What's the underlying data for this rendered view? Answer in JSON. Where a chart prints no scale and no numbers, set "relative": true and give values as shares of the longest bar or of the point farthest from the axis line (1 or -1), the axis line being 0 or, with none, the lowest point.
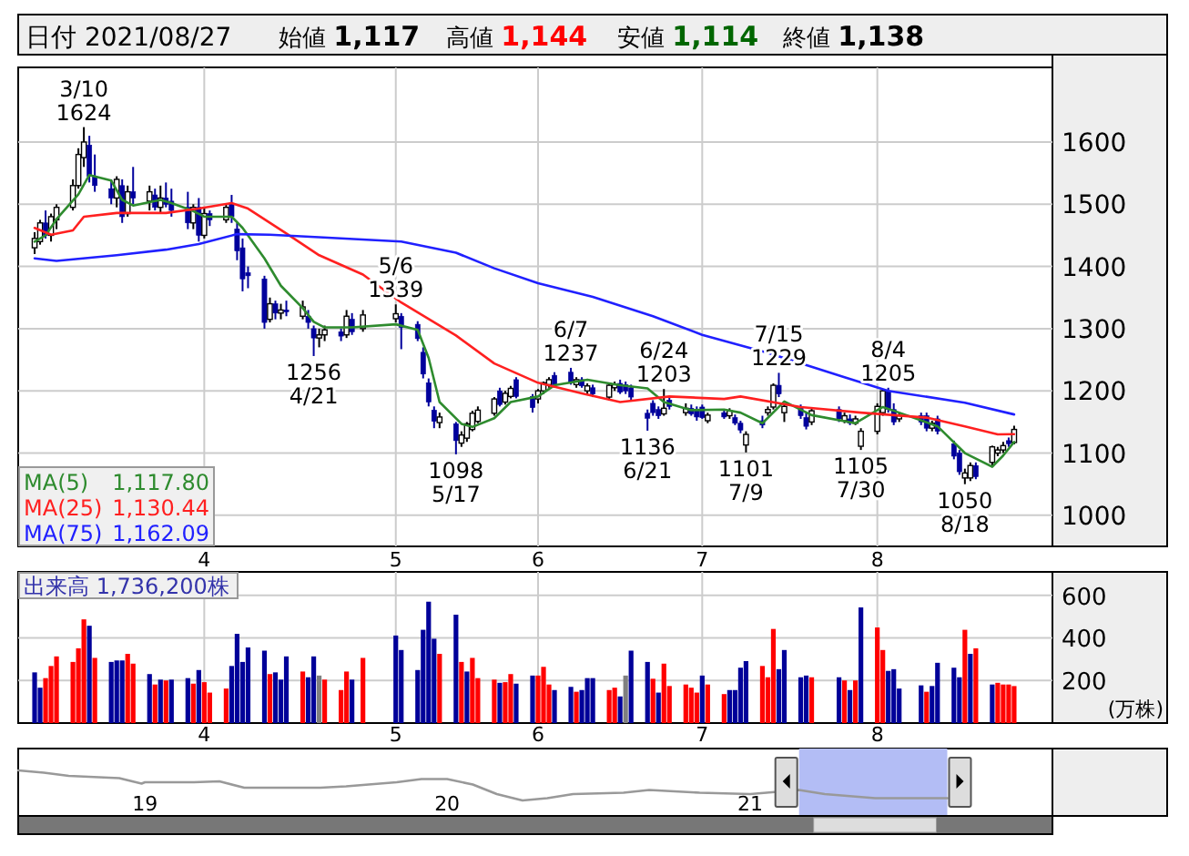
{
  "chart_data": [
    {
      "type": "candlestick",
      "title": "日付 2021/08/27",
      "annotations": [
        "始値 1,117",
        "高値 1,144",
        "安値 1,114",
        "終値 1,138",
        {
          "text": "3/10 1624",
          "x": "2021-03-10",
          "y": 1624
        },
        {
          "text": "1256 4/21",
          "x": "2021-04-21",
          "y": 1256
        },
        {
          "text": "5/6 1339",
          "x": "2021-05-06",
          "y": 1339
        },
        {
          "text": "1098 5/17",
          "x": "2021-05-17",
          "y": 1098
        },
        {
          "text": "6/7 1237",
          "x": "2021-06-07",
          "y": 1237
        },
        {
          "text": "1136 6/21",
          "x": "2021-06-21",
          "y": 1136
        },
        {
          "text": "6/24 1203",
          "x": "2021-06-24",
          "y": 1203
        },
        {
          "text": "1101 7/9",
          "x": "2021-07-09",
          "y": 1101
        },
        {
          "text": "7/15 1229",
          "x": "2021-07-15",
          "y": 1229
        },
        {
          "text": "1105 7/30",
          "x": "2021-07-30",
          "y": 1105
        },
        {
          "text": "8/4 1205",
          "x": "2021-08-04",
          "y": 1205
        },
        {
          "text": "1050 8/18",
          "x": "2021-08-18",
          "y": 1050
        }
      ],
      "x": [
        "2021-03-01",
        "2021-03-02",
        "2021-03-03",
        "2021-03-04",
        "2021-03-05",
        "2021-03-08",
        "2021-03-09",
        "2021-03-10",
        "2021-03-11",
        "2021-03-12",
        "2021-03-15",
        "2021-03-16",
        "2021-03-17",
        "2021-03-18",
        "2021-03-19",
        "2021-03-22",
        "2021-03-23",
        "2021-03-24",
        "2021-03-25",
        "2021-03-26",
        "2021-03-29",
        "2021-03-30",
        "2021-03-31",
        "2021-04-01",
        "2021-04-02",
        "2021-04-05",
        "2021-04-06",
        "2021-04-07",
        "2021-04-08",
        "2021-04-09",
        "2021-04-12",
        "2021-04-13",
        "2021-04-14",
        "2021-04-15",
        "2021-04-16",
        "2021-04-19",
        "2021-04-20",
        "2021-04-21",
        "2021-04-22",
        "2021-04-23",
        "2021-04-26",
        "2021-04-27",
        "2021-04-28",
        "2021-04-30",
        "2021-05-06",
        "2021-05-07",
        "2021-05-10",
        "2021-05-11",
        "2021-05-12",
        "2021-05-13",
        "2021-05-14",
        "2021-05-17",
        "2021-05-18",
        "2021-05-19",
        "2021-05-20",
        "2021-05-21",
        "2021-05-24",
        "2021-05-25",
        "2021-05-26",
        "2021-05-27",
        "2021-05-28",
        "2021-05-31",
        "2021-06-01",
        "2021-06-02",
        "2021-06-03",
        "2021-06-04",
        "2021-06-07",
        "2021-06-08",
        "2021-06-09",
        "2021-06-10",
        "2021-06-11",
        "2021-06-14",
        "2021-06-15",
        "2021-06-16",
        "2021-06-17",
        "2021-06-18",
        "2021-06-21",
        "2021-06-22",
        "2021-06-23",
        "2021-06-24",
        "2021-06-25",
        "2021-06-28",
        "2021-06-29",
        "2021-06-30",
        "2021-07-01",
        "2021-07-02",
        "2021-07-05",
        "2021-07-06",
        "2021-07-07",
        "2021-07-08",
        "2021-07-09",
        "2021-07-12",
        "2021-07-13",
        "2021-07-14",
        "2021-07-15",
        "2021-07-16",
        "2021-07-19",
        "2021-07-20",
        "2021-07-21",
        "2021-07-26",
        "2021-07-27",
        "2021-07-28",
        "2021-07-29",
        "2021-07-30",
        "2021-08-02",
        "2021-08-03",
        "2021-08-04",
        "2021-08-05",
        "2021-08-06",
        "2021-08-10",
        "2021-08-11",
        "2021-08-12",
        "2021-08-13",
        "2021-08-16",
        "2021-08-17",
        "2021-08-18",
        "2021-08-19",
        "2021-08-20",
        "2021-08-23",
        "2021-08-24",
        "2021-08-25",
        "2021-08-26",
        "2021-08-27"
      ],
      "ohlc": [
        [
          1430,
          1455,
          1420,
          1445
        ],
        [
          1440,
          1475,
          1435,
          1470
        ],
        [
          1470,
          1490,
          1445,
          1450
        ],
        [
          1450,
          1485,
          1440,
          1480
        ],
        [
          1475,
          1500,
          1460,
          1495
        ],
        [
          1495,
          1540,
          1490,
          1530
        ],
        [
          1530,
          1590,
          1525,
          1580
        ],
        [
          1575,
          1624,
          1560,
          1600
        ],
        [
          1595,
          1610,
          1535,
          1545
        ],
        [
          1545,
          1580,
          1520,
          1530
        ],
        [
          1525,
          1540,
          1500,
          1510
        ],
        [
          1510,
          1545,
          1495,
          1540
        ],
        [
          1530,
          1540,
          1470,
          1480
        ],
        [
          1485,
          1530,
          1480,
          1520
        ],
        [
          1520,
          1560,
          1500,
          1510
        ],
        [
          1505,
          1530,
          1490,
          1520
        ],
        [
          1515,
          1525,
          1490,
          1495
        ],
        [
          1495,
          1530,
          1485,
          1510
        ],
        [
          1510,
          1535,
          1495,
          1500
        ],
        [
          1505,
          1525,
          1480,
          1490
        ],
        [
          1495,
          1520,
          1460,
          1470
        ],
        [
          1470,
          1500,
          1460,
          1495
        ],
        [
          1495,
          1510,
          1440,
          1450
        ],
        [
          1450,
          1495,
          1445,
          1485
        ],
        [
          1485,
          1490,
          1465,
          1475
        ],
        [
          1475,
          1500,
          1470,
          1495
        ],
        [
          1500,
          1515,
          1470,
          1480
        ],
        [
          1460,
          1470,
          1410,
          1425
        ],
        [
          1430,
          1445,
          1360,
          1380
        ],
        [
          1390,
          1400,
          1365,
          1385
        ],
        [
          1380,
          1385,
          1300,
          1310
        ],
        [
          1315,
          1350,
          1310,
          1340
        ],
        [
          1340,
          1345,
          1315,
          1325
        ],
        [
          1325,
          1340,
          1315,
          1330
        ],
        [
          1330,
          1345,
          1320,
          1328
        ],
        [
          1320,
          1345,
          1315,
          1335
        ],
        [
          1320,
          1330,
          1300,
          1310
        ],
        [
          1300,
          1305,
          1256,
          1285
        ],
        [
          1285,
          1300,
          1270,
          1290
        ],
        [
          1290,
          1305,
          1280,
          1298
        ],
        [
          1295,
          1300,
          1280,
          1288
        ],
        [
          1290,
          1330,
          1285,
          1320
        ],
        [
          1315,
          1325,
          1290,
          1295
        ],
        [
          1300,
          1330,
          1295,
          1322
        ],
        [
          1316,
          1339,
          1310,
          1324
        ],
        [
          1320,
          1325,
          1267,
          1302
        ],
        [
          1307,
          1312,
          1280,
          1284
        ],
        [
          1262,
          1270,
          1220,
          1227
        ],
        [
          1213,
          1220,
          1175,
          1182
        ],
        [
          1169,
          1175,
          1140,
          1151
        ],
        [
          1149,
          1165,
          1140,
          1158
        ],
        [
          1147,
          1150,
          1098,
          1120
        ],
        [
          1116,
          1135,
          1110,
          1129
        ],
        [
          1124,
          1150,
          1118,
          1147
        ],
        [
          1138,
          1168,
          1135,
          1164
        ],
        [
          1151,
          1175,
          1148,
          1169
        ],
        [
          1164,
          1190,
          1160,
          1187
        ],
        [
          1200,
          1205,
          1175,
          1178
        ],
        [
          1182,
          1200,
          1178,
          1196
        ],
        [
          1191,
          1208,
          1188,
          1204
        ],
        [
          1218,
          1222,
          1188,
          1191
        ],
        [
          1191,
          1195,
          1165,
          1173
        ],
        [
          1187,
          1203,
          1180,
          1200
        ],
        [
          1200,
          1215,
          1195,
          1213
        ],
        [
          1210,
          1222,
          1205,
          1218
        ],
        [
          1225,
          1230,
          1205,
          1210
        ],
        [
          1230,
          1237,
          1210,
          1213
        ],
        [
          1210,
          1222,
          1205,
          1218
        ],
        [
          1218,
          1222,
          1205,
          1208
        ],
        [
          1200,
          1212,
          1195,
          1208
        ],
        [
          1205,
          1210,
          1190,
          1195
        ],
        [
          1190,
          1212,
          1185,
          1209
        ],
        [
          1205,
          1215,
          1200,
          1210
        ],
        [
          1212,
          1218,
          1195,
          1198
        ],
        [
          1210,
          1215,
          1195,
          1200
        ],
        [
          1205,
          1210,
          1185,
          1190
        ],
        [
          1164,
          1170,
          1136,
          1156
        ],
        [
          1180,
          1185,
          1160,
          1165
        ],
        [
          1170,
          1175,
          1155,
          1160
        ],
        [
          1163,
          1203,
          1160,
          1172
        ],
        [
          1185,
          1190,
          1170,
          1175
        ],
        [
          1165,
          1180,
          1160,
          1172
        ],
        [
          1172,
          1178,
          1160,
          1163
        ],
        [
          1170,
          1175,
          1152,
          1158
        ],
        [
          1174,
          1178,
          1155,
          1157
        ],
        [
          1152,
          1165,
          1148,
          1161
        ],
        [
          1165,
          1170,
          1155,
          1158
        ],
        [
          1160,
          1172,
          1155,
          1168
        ],
        [
          1157,
          1162,
          1145,
          1148
        ],
        [
          1148,
          1152,
          1132,
          1137
        ],
        [
          1113,
          1135,
          1101,
          1130
        ],
        [
          1152,
          1160,
          1140,
          1145
        ],
        [
          1165,
          1175,
          1160,
          1170
        ],
        [
          1174,
          1212,
          1170,
          1209
        ],
        [
          1209,
          1229,
          1190,
          1195
        ],
        [
          1165,
          1180,
          1150,
          1175
        ],
        [
          1172,
          1178,
          1155,
          1160
        ],
        [
          1157,
          1165,
          1138,
          1143
        ],
        [
          1150,
          1172,
          1145,
          1168
        ],
        [
          1170,
          1175,
          1150,
          1155
        ],
        [
          1152,
          1165,
          1148,
          1160
        ],
        [
          1155,
          1162,
          1145,
          1148
        ],
        [
          1148,
          1160,
          1145,
          1155
        ],
        [
          1111,
          1140,
          1105,
          1135
        ],
        [
          1135,
          1180,
          1130,
          1175
        ],
        [
          1165,
          1202,
          1160,
          1200
        ],
        [
          1200,
          1205,
          1165,
          1170
        ],
        [
          1170,
          1180,
          1145,
          1150
        ],
        [
          1155,
          1165,
          1150,
          1160
        ],
        [
          1160,
          1165,
          1145,
          1150
        ],
        [
          1160,
          1165,
          1135,
          1140
        ],
        [
          1140,
          1152,
          1135,
          1148
        ],
        [
          1155,
          1160,
          1130,
          1135
        ],
        [
          1115,
          1120,
          1090,
          1095
        ],
        [
          1100,
          1105,
          1065,
          1070
        ],
        [
          1060,
          1075,
          1050,
          1068
        ],
        [
          1060,
          1085,
          1055,
          1080
        ],
        [
          1080,
          1085,
          1058,
          1062
        ],
        [
          1085,
          1112,
          1080,
          1110
        ],
        [
          1100,
          1110,
          1095,
          1105
        ],
        [
          1105,
          1118,
          1100,
          1112
        ],
        [
          1120,
          1125,
          1110,
          1115
        ],
        [
          1117,
          1144,
          1114,
          1138
        ]
      ],
      "colors": [
        "#ffffff",
        "#ffffff",
        "#00009c",
        "#ffffff",
        "#ffffff",
        "#ffffff",
        "#ffffff",
        "#ffffff",
        "#00009c",
        "#00009c",
        "#00009c",
        "#ffffff",
        "#00009c",
        "#ffffff",
        "#00009c",
        "#ffffff",
        "#00009c",
        "#ffffff",
        "#00009c",
        "#00009c",
        "#00009c",
        "#ffffff",
        "#00009c",
        "#ffffff",
        "#00009c",
        "#ffffff",
        "#00009c",
        "#00009c",
        "#00009c",
        "#00009c",
        "#00009c",
        "#ffffff",
        "#00009c",
        "#ffffff",
        "#00009c",
        "#ffffff",
        "#00009c",
        "#00009c",
        "#ffffff",
        "#ffffff",
        "#00009c",
        "#ffffff",
        "#00009c",
        "#ffffff",
        "#ffffff",
        "#00009c",
        "#00009c",
        "#00009c",
        "#00009c",
        "#00009c",
        "#ffffff",
        "#00009c",
        "#ffffff",
        "#ffffff",
        "#ffffff",
        "#ffffff",
        "#ffffff",
        "#00009c",
        "#ffffff",
        "#ffffff",
        "#00009c",
        "#00009c",
        "#ffffff",
        "#ffffff",
        "#ffffff",
        "#00009c",
        "#00009c",
        "#ffffff",
        "#00009c",
        "#ffffff",
        "#00009c",
        "#ffffff",
        "#ffffff",
        "#00009c",
        "#00009c",
        "#00009c",
        "#00009c",
        "#00009c",
        "#00009c",
        "#ffffff",
        "#00009c",
        "#ffffff",
        "#00009c",
        "#00009c",
        "#00009c",
        "#ffffff",
        "#00009c",
        "#ffffff",
        "#00009c",
        "#00009c",
        "#ffffff",
        "#00009c",
        "#ffffff",
        "#ffffff",
        "#00009c",
        "#ffffff",
        "#00009c",
        "#00009c",
        "#ffffff",
        "#00009c",
        "#ffffff",
        "#00009c",
        "#ffffff",
        "#ffffff",
        "#ffffff",
        "#ffffff",
        "#00009c",
        "#00009c",
        "#ffffff",
        "#00009c",
        "#00009c",
        "#ffffff",
        "#00009c",
        "#00009c",
        "#00009c",
        "#ffffff",
        "#ffffff",
        "#00009c",
        "#ffffff",
        "#ffffff",
        "#ffffff",
        "#00009c",
        "#ffffff"
      ],
      "series": [
        {
          "type": "line",
          "name": "MA(5) 1,117.80",
          "color": "#2e8b2e",
          "x": [
            "2021-03-01",
            "2021-03-03",
            "2021-03-05",
            "2021-03-09",
            "2021-03-11",
            "2021-03-15",
            "2021-03-17",
            "2021-03-19",
            "2021-03-24",
            "2021-03-26",
            "2021-03-30",
            "2021-04-01",
            "2021-04-06",
            "2021-04-08",
            "2021-04-12",
            "2021-04-15",
            "2021-04-19",
            "2021-04-21",
            "2021-04-23",
            "2021-04-28",
            "2021-05-06",
            "2021-05-10",
            "2021-05-12",
            "2021-05-14",
            "2021-05-18",
            "2021-05-20",
            "2021-05-24",
            "2021-05-27",
            "2021-06-01",
            "2021-06-04",
            "2021-06-10",
            "2021-06-16",
            "2021-06-21",
            "2021-06-24",
            "2021-06-29",
            "2021-07-05",
            "2021-07-08",
            "2021-07-12",
            "2021-07-16",
            "2021-07-21",
            "2021-07-29",
            "2021-08-03",
            "2021-08-06",
            "2021-08-13",
            "2021-08-18",
            "2021-08-23",
            "2021-08-25",
            "2021-08-27"
          ],
          "values": [
            1440,
            1450,
            1476,
            1516,
            1547,
            1538,
            1507,
            1498,
            1507,
            1502,
            1489,
            1480,
            1480,
            1462,
            1413,
            1369,
            1333,
            1311,
            1302,
            1302,
            1307,
            1298,
            1253,
            1182,
            1147,
            1142,
            1156,
            1182,
            1191,
            1209,
            1218,
            1209,
            1204,
            1182,
            1169,
            1170,
            1165,
            1148,
            1183,
            1161,
            1148,
            1174,
            1165,
            1143,
            1100,
            1078,
            1096,
            1117.8
          ]
        },
        {
          "type": "line",
          "name": "MA(25) 1,130.44",
          "color": "#ff2020",
          "x": [
            "2021-03-01",
            "2021-03-04",
            "2021-03-08",
            "2021-03-10",
            "2021-03-16",
            "2021-03-25",
            "2021-03-31",
            "2021-04-06",
            "2021-04-09",
            "2021-04-16",
            "2021-04-22",
            "2021-04-30",
            "2021-05-07",
            "2021-05-17",
            "2021-05-24",
            "2021-06-01",
            "2021-06-09",
            "2021-06-16",
            "2021-06-25",
            "2021-07-05",
            "2021-07-08",
            "2021-07-19",
            "2021-07-30",
            "2021-08-11",
            "2021-08-18",
            "2021-08-24",
            "2021-08-27"
          ],
          "values": [
            1462,
            1451,
            1458,
            1480,
            1486,
            1486,
            1493,
            1502,
            1493,
            1453,
            1418,
            1387,
            1342,
            1289,
            1244,
            1213,
            1196,
            1182,
            1191,
            1187,
            1191,
            1174,
            1165,
            1157,
            1143,
            1130,
            1130.44
          ]
        },
        {
          "type": "line",
          "name": "MA(75) 1,162.09",
          "color": "#2020ff",
          "x": [
            "2021-03-01",
            "2021-03-05",
            "2021-03-16",
            "2021-03-25",
            "2021-03-31",
            "2021-04-07",
            "2021-04-13",
            "2021-04-22",
            "2021-05-07",
            "2021-05-17",
            "2021-05-24",
            "2021-06-01",
            "2021-06-11",
            "2021-06-22",
            "2021-07-01",
            "2021-07-13",
            "2021-07-27",
            "2021-08-04",
            "2021-08-18",
            "2021-08-27"
          ],
          "values": [
            1413,
            1409,
            1418,
            1427,
            1436,
            1452,
            1451,
            1447,
            1440,
            1422,
            1397,
            1373,
            1351,
            1320,
            1290,
            1261,
            1222,
            1200,
            1181,
            1162.09
          ]
        }
      ],
      "xlim": [
        "2021-02-26",
        "2021-09-03"
      ],
      "xticks": [
        {
          "value": "2021-04-01",
          "label": "4"
        },
        {
          "value": "2021-05-06",
          "label": "5"
        },
        {
          "value": "2021-06-01",
          "label": "6"
        },
        {
          "value": "2021-07-01",
          "label": "7"
        },
        {
          "value": "2021-08-02",
          "label": "8"
        }
      ],
      "ylim": [
        950,
        1720
      ],
      "yticks": [
        1000,
        1100,
        1200,
        1300,
        1400,
        1500,
        1600
      ],
      "grid": true,
      "legend": "bottom left"
    },
    {
      "type": "bar",
      "title": "出来高 1,736,200株",
      "ylabel": "(万株)",
      "x": [
        "2021-03-01",
        "2021-03-02",
        "2021-03-03",
        "2021-03-04",
        "2021-03-05",
        "2021-03-08",
        "2021-03-09",
        "2021-03-10",
        "2021-03-11",
        "2021-03-12",
        "2021-03-15",
        "2021-03-16",
        "2021-03-17",
        "2021-03-18",
        "2021-03-19",
        "2021-03-22",
        "2021-03-23",
        "2021-03-24",
        "2021-03-25",
        "2021-03-26",
        "2021-03-29",
        "2021-03-30",
        "2021-03-31",
        "2021-04-01",
        "2021-04-02",
        "2021-04-05",
        "2021-04-06",
        "2021-04-07",
        "2021-04-08",
        "2021-04-09",
        "2021-04-12",
        "2021-04-13",
        "2021-04-14",
        "2021-04-15",
        "2021-04-16",
        "2021-04-19",
        "2021-04-20",
        "2021-04-21",
        "2021-04-22",
        "2021-04-23",
        "2021-04-26",
        "2021-04-27",
        "2021-04-28",
        "2021-04-30",
        "2021-05-06",
        "2021-05-07",
        "2021-05-10",
        "2021-05-11",
        "2021-05-12",
        "2021-05-13",
        "2021-05-14",
        "2021-05-17",
        "2021-05-18",
        "2021-05-19",
        "2021-05-20",
        "2021-05-21",
        "2021-05-24",
        "2021-05-25",
        "2021-05-26",
        "2021-05-27",
        "2021-05-28",
        "2021-05-31",
        "2021-06-01",
        "2021-06-02",
        "2021-06-03",
        "2021-06-04",
        "2021-06-07",
        "2021-06-08",
        "2021-06-09",
        "2021-06-10",
        "2021-06-11",
        "2021-06-14",
        "2021-06-15",
        "2021-06-16",
        "2021-06-17",
        "2021-06-18",
        "2021-06-21",
        "2021-06-22",
        "2021-06-23",
        "2021-06-24",
        "2021-06-25",
        "2021-06-28",
        "2021-06-29",
        "2021-06-30",
        "2021-07-01",
        "2021-07-02",
        "2021-07-05",
        "2021-07-06",
        "2021-07-07",
        "2021-07-08",
        "2021-07-09",
        "2021-07-12",
        "2021-07-13",
        "2021-07-14",
        "2021-07-15",
        "2021-07-16",
        "2021-07-19",
        "2021-07-20",
        "2021-07-21",
        "2021-07-26",
        "2021-07-27",
        "2021-07-28",
        "2021-07-29",
        "2021-07-30",
        "2021-08-02",
        "2021-08-03",
        "2021-08-04",
        "2021-08-05",
        "2021-08-06",
        "2021-08-10",
        "2021-08-11",
        "2021-08-12",
        "2021-08-13",
        "2021-08-16",
        "2021-08-17",
        "2021-08-18",
        "2021-08-19",
        "2021-08-20",
        "2021-08-23",
        "2021-08-24",
        "2021-08-25",
        "2021-08-26",
        "2021-08-27"
      ],
      "values": [
        238,
        166,
        211,
        268,
        313,
        287,
        351,
        487,
        457,
        306,
        287,
        294,
        294,
        325,
        279,
        230,
        181,
        204,
        200,
        204,
        211,
        185,
        249,
        192,
        143,
        162,
        268,
        419,
        287,
        355,
        340,
        230,
        238,
        204,
        313,
        242,
        215,
        313,
        223,
        204,
        155,
        242,
        204,
        306,
        411,
        343,
        249,
        438,
        570,
        396,
        325,
        509,
        287,
        242,
        306,
        211,
        204,
        189,
        192,
        230,
        185,
        223,
        223,
        264,
        181,
        155,
        170,
        147,
        155,
        211,
        211,
        155,
        166,
        125,
        223,
        340,
        287,
        208,
        143,
        279,
        174,
        181,
        166,
        143,
        223,
        181,
        136,
        155,
        155,
        260,
        291,
        268,
        215,
        442,
        253,
        343,
        215,
        223,
        215,
        215,
        200,
        155,
        200,
        543,
        449,
        343,
        245,
        253,
        162,
        177,
        147,
        174,
        283,
        260,
        215,
        438,
        325,
        351,
        181,
        189,
        181,
        181,
        173.62
      ],
      "colors": [
        "#000099",
        "#000099",
        "#ff0000",
        "#ff0000",
        "#ff0000",
        "#ff0000",
        "#ff0000",
        "#ff0000",
        "#000099",
        "#ff0000",
        "#000099",
        "#000099",
        "#000099",
        "#ff0000",
        "#ff0000",
        "#000099",
        "#ff0000",
        "#000099",
        "#ff0000",
        "#000099",
        "#000099",
        "#ff0000",
        "#000099",
        "#ff0000",
        "#ff0000",
        "#ff0000",
        "#000099",
        "#000099",
        "#000099",
        "#000099",
        "#000099",
        "#ff0000",
        "#000099",
        "#000099",
        "#000099",
        "#ff0000",
        "#000099",
        "#000099",
        "#808080",
        "#ff0000",
        "#ff0000",
        "#ff0000",
        "#000099",
        "#ff0000",
        "#000099",
        "#000099",
        "#000099",
        "#000099",
        "#000099",
        "#000099",
        "#ff0000",
        "#000099",
        "#ff0000",
        "#000099",
        "#ff0000",
        "#ff0000",
        "#ff0000",
        "#000099",
        "#ff0000",
        "#ff0000",
        "#000099",
        "#000099",
        "#ff0000",
        "#ff0000",
        "#ff0000",
        "#000099",
        "#000099",
        "#ff0000",
        "#000099",
        "#000099",
        "#000099",
        "#ff0000",
        "#ff0000",
        "#000099",
        "#808080",
        "#000099",
        "#000099",
        "#ff0000",
        "#000099",
        "#ff0000",
        "#ff0000",
        "#ff0000",
        "#ff0000",
        "#ff0000",
        "#000099",
        "#ff0000",
        "#ff0000",
        "#000099",
        "#000099",
        "#000099",
        "#000099",
        "#ff0000",
        "#ff0000",
        "#ff0000",
        "#000099",
        "#000099",
        "#000099",
        "#000099",
        "#ff0000",
        "#000099",
        "#ff0000",
        "#000099",
        "#ff0000",
        "#000099",
        "#ff0000",
        "#ff0000",
        "#000099",
        "#000099",
        "#000099",
        "#000099",
        "#ff0000",
        "#000099",
        "#000099",
        "#000099",
        "#000099",
        "#ff0000",
        "#000099",
        "#ff0000",
        "#000099",
        "#ff0000",
        "#ff0000",
        "#ff0000",
        "#ff0000"
      ],
      "xlim": [
        "2021-02-26",
        "2021-09-03"
      ],
      "xticks": [
        {
          "value": "2021-04-01",
          "label": "4"
        },
        {
          "value": "2021-05-06",
          "label": "5"
        },
        {
          "value": "2021-06-01",
          "label": "6"
        },
        {
          "value": "2021-07-01",
          "label": "7"
        },
        {
          "value": "2021-08-02",
          "label": "8"
        }
      ],
      "ylim": [
        0,
        710
      ],
      "yticks": [
        200,
        400,
        600
      ],
      "grid": true
    },
    {
      "type": "line",
      "relative": true,
      "color": "#999999",
      "x": [
        "2018-08",
        "2018-09",
        "2018-10",
        "2018-12",
        "2018-12-28",
        "2019-01",
        "2019-03",
        "2019-04",
        "2019-05",
        "2019-07",
        "2019-08",
        "2019-09",
        "2019-11",
        "2019-12",
        "2020-01",
        "2020-02",
        "2020-03",
        "2020-04",
        "2020-05",
        "2020-06",
        "2020-08",
        "2020-09",
        "2020-11",
        "2021-01",
        "2021-03",
        "2021-04",
        "2021-06",
        "2021-07",
        "2021-08-27"
      ],
      "values": [
        1,
        0.95,
        0.88,
        0.83,
        0.71,
        0.74,
        0.74,
        0.76,
        0.62,
        0.62,
        0.62,
        0.65,
        0.74,
        0.81,
        0.81,
        0.69,
        0.48,
        0.34,
        0.39,
        0.48,
        0.51,
        0.57,
        0.51,
        0.48,
        0.57,
        0.48,
        0.39,
        0.39,
        0.39
      ],
      "xlim": [
        "2018-08",
        "2022-01"
      ],
      "xticks": [
        {
          "value": "2019",
          "label": "19"
        },
        {
          "value": "2020",
          "label": "20"
        },
        {
          "value": "2021",
          "label": "21"
        }
      ],
      "bands": [
        {
          "axis": "x",
          "from": "2021-03-01",
          "to": "2021-08-27",
          "color": "#b3bdf5"
        }
      ]
    }
  ]
}
